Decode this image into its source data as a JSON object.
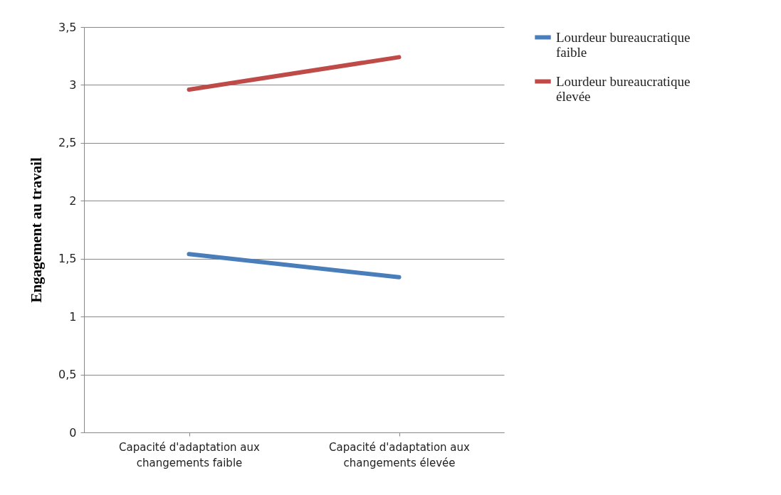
{
  "chart_data": {
    "type": "line",
    "ylabel": "Engagement au travail",
    "categories": [
      "Capacité d'adaptation aux changements faible",
      "Capacité d'adaptation aux changements élevée"
    ],
    "series": [
      {
        "name": "Lourdeur bureaucratique faible",
        "color": "#4a7ebb",
        "values": [
          1.54,
          1.34
        ]
      },
      {
        "name": "Lourdeur bureaucratique élevée",
        "color": "#be4b48",
        "values": [
          2.96,
          3.24
        ]
      }
    ],
    "ylim": [
      0,
      3.5
    ],
    "yticks": [
      0,
      {
        "value": 0.5,
        "label": "0,5"
      },
      1,
      {
        "value": 1.5,
        "label": "1,5"
      },
      2,
      {
        "value": 2.5,
        "label": "2,5"
      },
      3,
      {
        "value": 3.5,
        "label": "3,5"
      }
    ],
    "grid": "y",
    "legend": "right",
    "marker": "none",
    "line_style": "solid"
  }
}
